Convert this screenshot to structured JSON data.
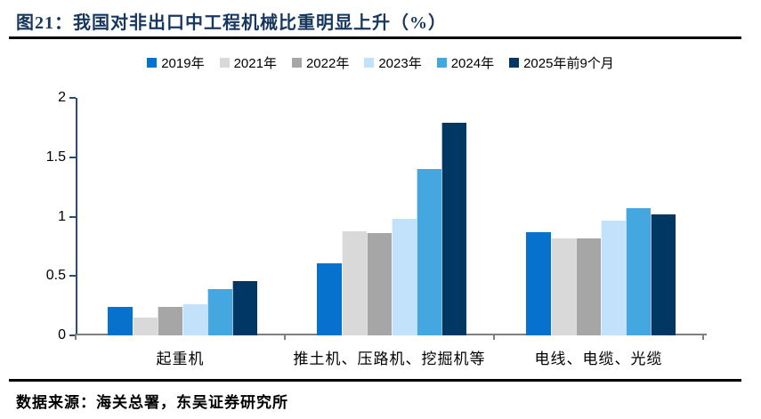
{
  "header": {
    "title": "图21：我国对非出口中工程机械比重明显上升（%）"
  },
  "footer": {
    "source": "数据来源：海关总署，东吴证券研究所"
  },
  "colors": {
    "title_text": "#17375E",
    "y_axis_line": "#254E77",
    "x_axis_line": "#7F7F7F",
    "rule": "#000000"
  },
  "chart_data": {
    "type": "bar",
    "title": "图21：我国对非出口中工程机械比重明显上升（%）",
    "categories": [
      "起重机",
      "推土机、压路机、挖掘机等",
      "电线、电缆、光缆"
    ],
    "series": [
      {
        "name": "2019年",
        "color": "#0672CE",
        "values": [
          0.24,
          0.61,
          0.87
        ]
      },
      {
        "name": "2021年",
        "color": "#D9D9D9",
        "values": [
          0.15,
          0.88,
          0.82
        ]
      },
      {
        "name": "2022年",
        "color": "#A6A6A6",
        "values": [
          0.24,
          0.86,
          0.82
        ]
      },
      {
        "name": "2023年",
        "color": "#C2E1FA",
        "values": [
          0.26,
          0.98,
          0.97
        ]
      },
      {
        "name": "2024年",
        "color": "#45A7E0",
        "values": [
          0.39,
          1.4,
          1.07
        ]
      },
      {
        "name": "2025年前9个月",
        "color": "#003763",
        "values": [
          0.46,
          1.79,
          1.02
        ]
      }
    ],
    "xlabel": "",
    "ylabel": "",
    "ylim": [
      0,
      2
    ],
    "yticks": [
      0,
      0.5,
      1,
      1.5,
      2
    ],
    "ytick_labels": [
      "0",
      "0.5",
      "1",
      "1.5",
      "2"
    ],
    "grid": false,
    "legend_position": "top"
  }
}
